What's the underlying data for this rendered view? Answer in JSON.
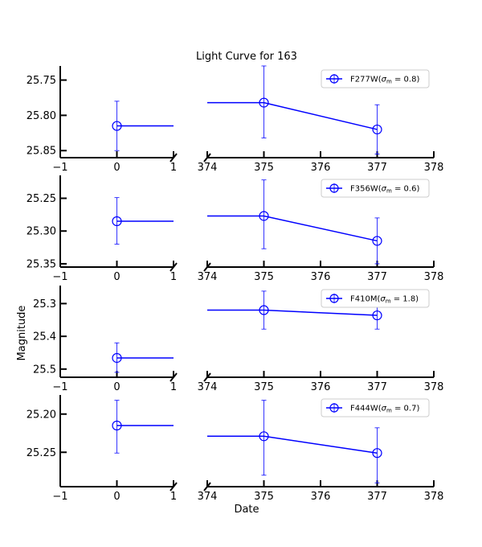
{
  "chart_data": {
    "type": "line",
    "title": "Light Curve for 163",
    "xlabel": "Date",
    "ylabel": "Magnitude",
    "y_inverted": true,
    "broken_x_axis": true,
    "x_segments": [
      {
        "xlim": [
          -1,
          1
        ],
        "ticks": [
          -1,
          0,
          1
        ],
        "tick_labels": [
          "−1",
          "0",
          "1"
        ]
      },
      {
        "xlim": [
          374,
          378
        ],
        "ticks": [
          374,
          375,
          376,
          377,
          378
        ],
        "tick_labels": [
          "374",
          "375",
          "376",
          "377",
          "378"
        ]
      }
    ],
    "line_color": "#0000ff",
    "marker": "open-circle",
    "legend_location": "top-right",
    "panels": [
      {
        "name": "F277W",
        "legend_label": "F277W(σm = 0.8)",
        "ylim": [
          25.86,
          25.73
        ],
        "y_ticks": [
          25.75,
          25.8,
          25.85
        ],
        "y_tick_labels": [
          "25.75",
          "25.80",
          "25.85"
        ],
        "points": [
          {
            "x": 0,
            "y": 25.815,
            "yerr_low": 25.78,
            "yerr_high": 25.85
          },
          {
            "x": 375,
            "y": 25.782,
            "yerr_low": 25.73,
            "yerr_high": 25.832
          },
          {
            "x": 377,
            "y": 25.82,
            "yerr_low": 25.785,
            "yerr_high": 25.855
          }
        ]
      },
      {
        "name": "F356W",
        "legend_label": "F356W(σm = 0.6)",
        "ylim": [
          25.355,
          25.215
        ],
        "y_ticks": [
          25.25,
          25.3,
          25.35
        ],
        "y_tick_labels": [
          "25.25",
          "25.30",
          "25.35"
        ],
        "points": [
          {
            "x": 0,
            "y": 25.285,
            "yerr_low": 25.249,
            "yerr_high": 25.32
          },
          {
            "x": 375,
            "y": 25.277,
            "yerr_low": 25.222,
            "yerr_high": 25.327
          },
          {
            "x": 377,
            "y": 25.315,
            "yerr_low": 25.28,
            "yerr_high": 25.35
          }
        ]
      },
      {
        "name": "F410M",
        "legend_label": "F410M(σm = 1.8)",
        "ylim": [
          25.525,
          25.245
        ],
        "y_ticks": [
          25.3,
          25.4,
          25.5
        ],
        "y_tick_labels": [
          "25.3",
          "25.4",
          "25.5"
        ],
        "points": [
          {
            "x": 0,
            "y": 25.466,
            "yerr_low": 25.42,
            "yerr_high": 25.51
          },
          {
            "x": 375,
            "y": 25.32,
            "yerr_low": 25.262,
            "yerr_high": 25.378
          },
          {
            "x": 377,
            "y": 25.336,
            "yerr_low": 25.294,
            "yerr_high": 25.378
          }
        ]
      },
      {
        "name": "F444W",
        "legend_label": "F444W(σm = 0.7)",
        "ylim": [
          25.295,
          25.175
        ],
        "y_ticks": [
          25.2,
          25.25
        ],
        "y_tick_labels": [
          "25.20",
          "25.25"
        ],
        "points": [
          {
            "x": 0,
            "y": 25.215,
            "yerr_low": 25.182,
            "yerr_high": 25.251
          },
          {
            "x": 375,
            "y": 25.229,
            "yerr_low": 25.182,
            "yerr_high": 25.28
          },
          {
            "x": 377,
            "y": 25.251,
            "yerr_low": 25.218,
            "yerr_high": 25.29
          }
        ]
      }
    ]
  }
}
